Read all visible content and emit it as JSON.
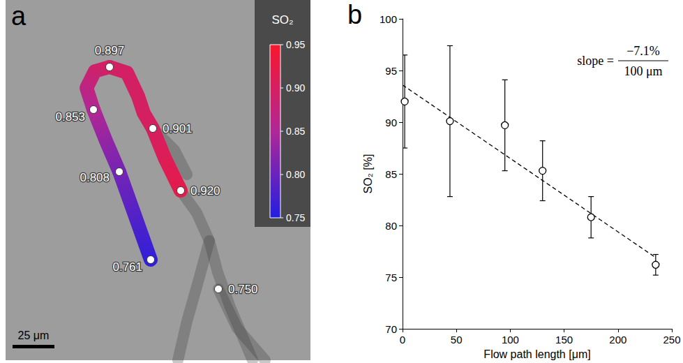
{
  "chart_data": [
    {
      "type": "path",
      "panel": "a",
      "values": [
        0.761,
        0.808,
        0.853,
        0.897,
        0.901,
        0.92,
        0.75
      ],
      "value_labels": [
        "0.761",
        "0.808",
        "0.853",
        "0.897",
        "0.901",
        "0.920",
        "0.750"
      ],
      "colorbar": {
        "title": "SO₂",
        "range": [
          0.75,
          0.95
        ],
        "ticks": [
          0.75,
          {
            "value": 0.8,
            "label": "0.80"
          },
          0.85,
          {
            "value": 0.9,
            "label": "0.90"
          },
          0.95
        ]
      },
      "scale_bar": "25 μm"
    },
    {
      "type": "scatter",
      "panel": "b",
      "x": [
        2,
        44,
        95,
        130,
        175,
        235
      ],
      "values": [
        92.0,
        90.1,
        89.7,
        85.3,
        80.8,
        76.2
      ],
      "error": [
        4.5,
        7.3,
        4.4,
        2.9,
        2.0,
        1.0
      ],
      "marker": "circle",
      "xlim": [
        0,
        250
      ],
      "xticks": [
        0,
        50,
        100,
        150,
        200,
        250
      ],
      "ylim": [
        70,
        100
      ],
      "yticks": [
        70,
        75,
        80,
        85,
        90,
        95,
        100
      ],
      "x_label": "Flow path length [μm]",
      "y_label": "SO₂ [%]",
      "grid": false,
      "fit": {
        "x": [
          0,
          235
        ],
        "values": [
          93.6,
          76.9
        ],
        "line_style": "dashed"
      },
      "annotation": {
        "prefix": "slope =",
        "numerator": "−7.1%",
        "denominator": "100 μm"
      }
    }
  ]
}
